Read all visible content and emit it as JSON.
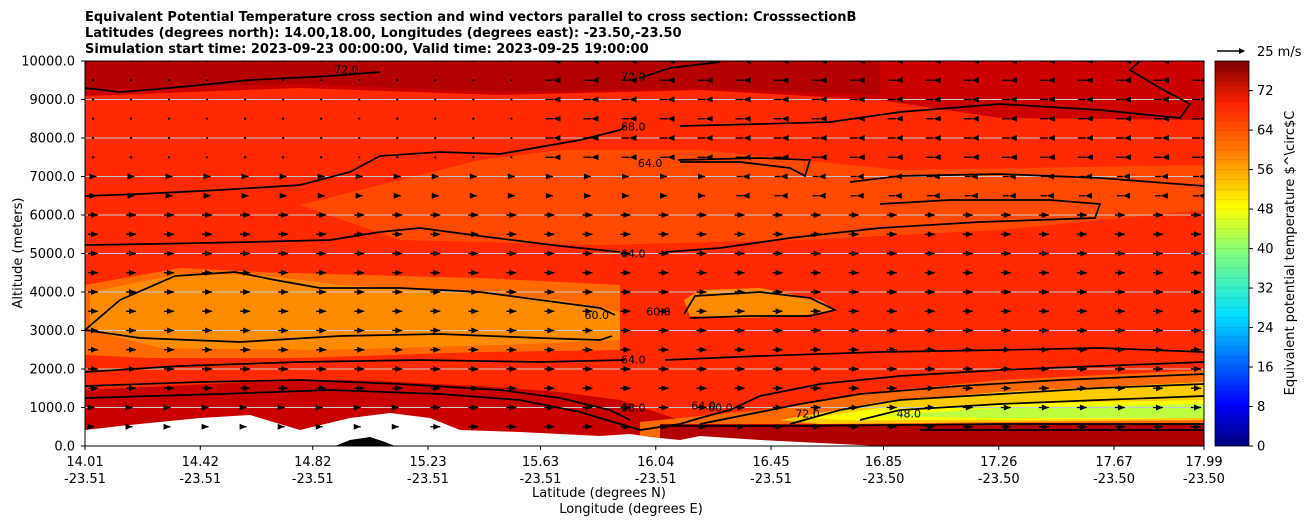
{
  "chart_data": {
    "type": "contour-filled",
    "title_lines": [
      "Equivalent Potential Temperature cross section and wind vectors parallel to cross section: CrosssectionB",
      "Latitudes (degrees north): 14.00,18.00, Longitudes (degrees east): -23.50,-23.50",
      "Simulation start time: 2023-09-23 00:00:00, Valid time: 2023-09-25 19:00:00"
    ],
    "xlabel_lines": [
      "Latitude (degrees N)",
      "Longitude (degrees E)"
    ],
    "ylabel": "Altitude (meters)",
    "x_ticks": [
      {
        "lat": "14.01",
        "lon": "-23.51"
      },
      {
        "lat": "14.42",
        "lon": "-23.51"
      },
      {
        "lat": "14.82",
        "lon": "-23.51"
      },
      {
        "lat": "15.23",
        "lon": "-23.51"
      },
      {
        "lat": "15.63",
        "lon": "-23.51"
      },
      {
        "lat": "16.04",
        "lon": "-23.51"
      },
      {
        "lat": "16.45",
        "lon": "-23.51"
      },
      {
        "lat": "16.85",
        "lon": "-23.50"
      },
      {
        "lat": "17.26",
        "lon": "-23.50"
      },
      {
        "lat": "17.67",
        "lon": "-23.50"
      },
      {
        "lat": "17.99",
        "lon": "-23.50"
      }
    ],
    "y_ticks": [
      "0.0",
      "1000.0",
      "2000.0",
      "3000.0",
      "4000.0",
      "5000.0",
      "6000.0",
      "7000.0",
      "8000.0",
      "9000.0",
      "10000.0"
    ],
    "xlim": [
      14.01,
      17.99
    ],
    "ylim": [
      0,
      10000
    ],
    "grid": "horizontal",
    "colorbar": {
      "label": "Equivalent potential temperature $^\\circ$C",
      "ticks": [
        "0",
        "8",
        "16",
        "24",
        "32",
        "40",
        "48",
        "56",
        "64",
        "72"
      ],
      "range": [
        0,
        78
      ],
      "colormap": "jet"
    },
    "quiver_key": "25 m/s",
    "contour_labels": [
      {
        "text": "72.0",
        "x": 14.94,
        "y": 9780
      },
      {
        "text": "72.0",
        "x": 15.96,
        "y": 9600
      },
      {
        "text": "68.0",
        "x": 15.96,
        "y": 8300
      },
      {
        "text": "64.0",
        "x": 16.02,
        "y": 7350
      },
      {
        "text": "64.0",
        "x": 15.96,
        "y": 5000
      },
      {
        "text": "60.0",
        "x": 15.83,
        "y": 3400
      },
      {
        "text": "60.0",
        "x": 16.05,
        "y": 3500
      },
      {
        "text": "64.0",
        "x": 15.96,
        "y": 2250
      },
      {
        "text": "68.0",
        "x": 15.96,
        "y": 1000
      },
      {
        "text": "64.0",
        "x": 16.21,
        "y": 1050
      },
      {
        "text": "60.0",
        "x": 16.27,
        "y": 1000
      },
      {
        "text": "72.0",
        "x": 16.58,
        "y": 850
      },
      {
        "text": "48.0",
        "x": 16.94,
        "y": 850
      }
    ]
  }
}
